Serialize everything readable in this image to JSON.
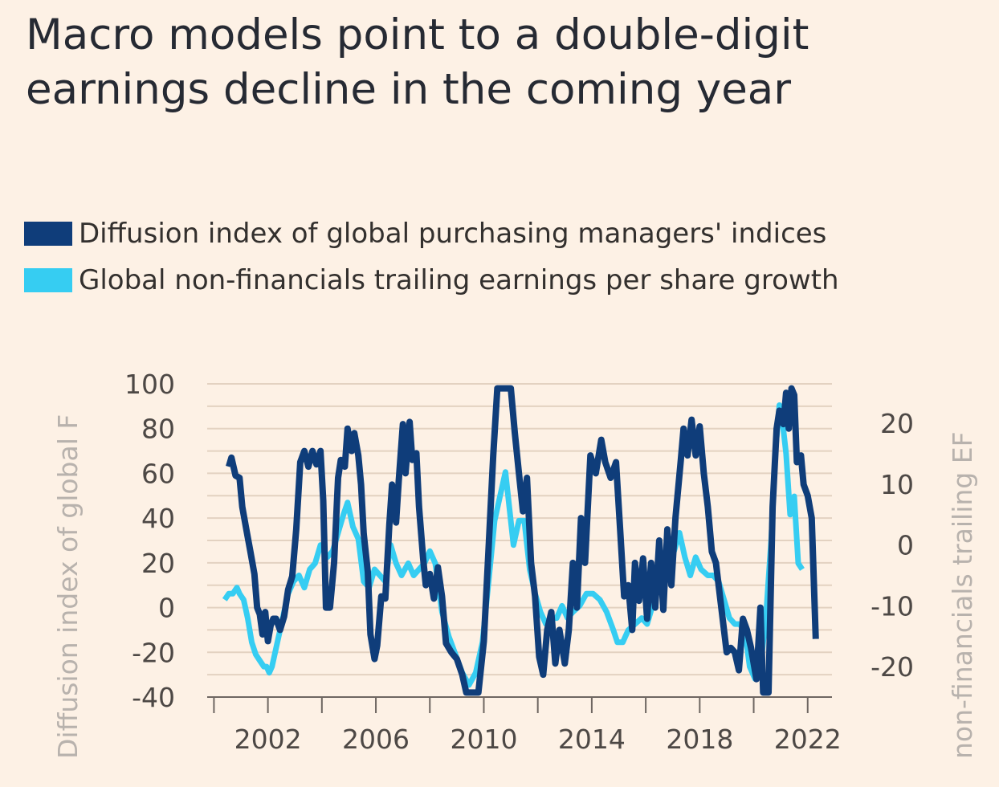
{
  "title": "Macro models point to a double-digit earnings decline in the coming year",
  "legend": [
    {
      "label": "Diffusion index of global purchasing managers' indices",
      "color": "#0f3d7a"
    },
    {
      "label": "Global non-financials trailing earnings per share growth",
      "color": "#36cdf2"
    }
  ],
  "colors": {
    "background": "#fdf1e5",
    "grid": "#e3d2c1",
    "axis": "#6e6661",
    "tick_text": "#4d4845",
    "axis_title": "#b8b2ad"
  },
  "chart_data": {
    "type": "line",
    "ylabel": "Diffusion index of global F",
    "y2label": "non-financials trailing EF",
    "xlim": [
      1999.75,
      2022.9
    ],
    "ylim": [
      -40,
      100
    ],
    "y2lim": [
      -25,
      26.5
    ],
    "x_ticks": [
      2002,
      2006,
      2010,
      2014,
      2018,
      2022
    ],
    "y_ticks": [
      -40,
      -20,
      0,
      20,
      40,
      60,
      80,
      100
    ],
    "y2_ticks": [
      -20,
      -10,
      0,
      10,
      20
    ],
    "grid": true,
    "legend_position": "top",
    "series": [
      {
        "name": "Diffusion index of global purchasing managers' indices",
        "axis": "left",
        "color": "#0f3d7a",
        "points": [
          [
            2000.55,
            63
          ],
          [
            2000.65,
            67
          ],
          [
            2000.8,
            59
          ],
          [
            2000.95,
            58
          ],
          [
            2001.05,
            45
          ],
          [
            2001.2,
            35
          ],
          [
            2001.35,
            25
          ],
          [
            2001.5,
            15
          ],
          [
            2001.6,
            0
          ],
          [
            2001.7,
            -3
          ],
          [
            2001.8,
            -12
          ],
          [
            2001.9,
            -2
          ],
          [
            2002.0,
            -15
          ],
          [
            2002.1,
            -8
          ],
          [
            2002.2,
            -5
          ],
          [
            2002.3,
            -5
          ],
          [
            2002.45,
            -10
          ],
          [
            2002.6,
            -4
          ],
          [
            2002.75,
            8
          ],
          [
            2002.9,
            14
          ],
          [
            2003.05,
            35
          ],
          [
            2003.2,
            65
          ],
          [
            2003.35,
            70
          ],
          [
            2003.5,
            63
          ],
          [
            2003.65,
            70
          ],
          [
            2003.8,
            64
          ],
          [
            2003.95,
            70
          ],
          [
            2004.05,
            48
          ],
          [
            2004.15,
            0
          ],
          [
            2004.3,
            0
          ],
          [
            2004.45,
            20
          ],
          [
            2004.6,
            58
          ],
          [
            2004.7,
            66
          ],
          [
            2004.85,
            63
          ],
          [
            2004.95,
            80
          ],
          [
            2005.1,
            70
          ],
          [
            2005.2,
            78
          ],
          [
            2005.35,
            68
          ],
          [
            2005.45,
            55
          ],
          [
            2005.55,
            33
          ],
          [
            2005.7,
            16
          ],
          [
            2005.8,
            -12
          ],
          [
            2005.95,
            -23
          ],
          [
            2006.05,
            -17
          ],
          [
            2006.2,
            5
          ],
          [
            2006.35,
            4
          ],
          [
            2006.5,
            37
          ],
          [
            2006.6,
            55
          ],
          [
            2006.75,
            38
          ],
          [
            2006.85,
            57
          ],
          [
            2007.0,
            82
          ],
          [
            2007.1,
            60
          ],
          [
            2007.25,
            83
          ],
          [
            2007.35,
            66
          ],
          [
            2007.5,
            69
          ],
          [
            2007.6,
            45
          ],
          [
            2007.75,
            22
          ],
          [
            2007.85,
            10
          ],
          [
            2008.0,
            15
          ],
          [
            2008.15,
            4
          ],
          [
            2008.3,
            18
          ],
          [
            2008.45,
            5
          ],
          [
            2008.6,
            -16
          ],
          [
            2008.8,
            -20
          ],
          [
            2009.0,
            -23
          ],
          [
            2009.2,
            -30
          ],
          [
            2009.35,
            -38
          ],
          [
            2009.6,
            -38
          ],
          [
            2009.8,
            -38
          ],
          [
            2010.0,
            -15
          ],
          [
            2010.15,
            20
          ],
          [
            2010.35,
            68
          ],
          [
            2010.5,
            98
          ],
          [
            2010.75,
            98
          ],
          [
            2011.0,
            98
          ],
          [
            2011.15,
            78
          ],
          [
            2011.3,
            60
          ],
          [
            2011.45,
            43
          ],
          [
            2011.6,
            58
          ],
          [
            2011.75,
            20
          ],
          [
            2011.9,
            5
          ],
          [
            2012.05,
            -22
          ],
          [
            2012.2,
            -30
          ],
          [
            2012.35,
            -10
          ],
          [
            2012.5,
            -2
          ],
          [
            2012.65,
            -25
          ],
          [
            2012.8,
            -10
          ],
          [
            2013.0,
            -25
          ],
          [
            2013.15,
            -10
          ],
          [
            2013.3,
            20
          ],
          [
            2013.45,
            0
          ],
          [
            2013.6,
            40
          ],
          [
            2013.75,
            20
          ],
          [
            2013.95,
            68
          ],
          [
            2014.15,
            60
          ],
          [
            2014.35,
            75
          ],
          [
            2014.5,
            65
          ],
          [
            2014.7,
            58
          ],
          [
            2014.9,
            65
          ],
          [
            2015.05,
            35
          ],
          [
            2015.2,
            5
          ],
          [
            2015.35,
            10
          ],
          [
            2015.5,
            -10
          ],
          [
            2015.6,
            20
          ],
          [
            2015.75,
            3
          ],
          [
            2015.9,
            22
          ],
          [
            2016.05,
            -5
          ],
          [
            2016.2,
            20
          ],
          [
            2016.35,
            0
          ],
          [
            2016.5,
            30
          ],
          [
            2016.65,
            -1
          ],
          [
            2016.8,
            35
          ],
          [
            2016.95,
            10
          ],
          [
            2017.1,
            40
          ],
          [
            2017.3,
            66
          ],
          [
            2017.4,
            80
          ],
          [
            2017.55,
            68
          ],
          [
            2017.7,
            84
          ],
          [
            2017.85,
            68
          ],
          [
            2018.0,
            81
          ],
          [
            2018.15,
            60
          ],
          [
            2018.3,
            45
          ],
          [
            2018.45,
            25
          ],
          [
            2018.6,
            20
          ],
          [
            2018.8,
            0
          ],
          [
            2019.0,
            -20
          ],
          [
            2019.15,
            -18
          ],
          [
            2019.3,
            -20
          ],
          [
            2019.45,
            -28
          ],
          [
            2019.6,
            -5
          ],
          [
            2019.75,
            -10
          ],
          [
            2019.9,
            -18
          ],
          [
            2020.1,
            -32
          ],
          [
            2020.25,
            0
          ],
          [
            2020.35,
            -38
          ],
          [
            2020.55,
            -38
          ],
          [
            2020.7,
            45
          ],
          [
            2020.85,
            80
          ],
          [
            2020.95,
            88
          ],
          [
            2021.1,
            82
          ],
          [
            2021.2,
            96
          ],
          [
            2021.3,
            80
          ],
          [
            2021.4,
            98
          ],
          [
            2021.5,
            95
          ],
          [
            2021.6,
            65
          ],
          [
            2021.75,
            68
          ],
          [
            2021.85,
            55
          ],
          [
            2022.0,
            50
          ],
          [
            2022.15,
            40
          ],
          [
            2022.3,
            -14
          ]
        ]
      },
      {
        "name": "Global non-financials trailing earnings per share growth",
        "axis": "right",
        "color": "#36cdf2",
        "points": [
          [
            2000.4,
            -9
          ],
          [
            2000.55,
            -8
          ],
          [
            2000.7,
            -8
          ],
          [
            2000.85,
            -7
          ],
          [
            2000.95,
            -8
          ],
          [
            2001.1,
            -9
          ],
          [
            2001.25,
            -12
          ],
          [
            2001.4,
            -16
          ],
          [
            2001.55,
            -18
          ],
          [
            2001.7,
            -19
          ],
          [
            2001.85,
            -20
          ],
          [
            2001.95,
            -20
          ],
          [
            2002.05,
            -21
          ],
          [
            2002.15,
            -20
          ],
          [
            2002.35,
            -16
          ],
          [
            2002.55,
            -12
          ],
          [
            2002.75,
            -8
          ],
          [
            2002.95,
            -6
          ],
          [
            2003.15,
            -5
          ],
          [
            2003.35,
            -7
          ],
          [
            2003.55,
            -4
          ],
          [
            2003.75,
            -3
          ],
          [
            2003.95,
            0
          ],
          [
            2004.2,
            -2
          ],
          [
            2004.4,
            -1
          ],
          [
            2004.6,
            2
          ],
          [
            2004.8,
            5
          ],
          [
            2004.95,
            7
          ],
          [
            2005.15,
            3
          ],
          [
            2005.35,
            1
          ],
          [
            2005.55,
            -6
          ],
          [
            2005.75,
            -7
          ],
          [
            2005.95,
            -4
          ],
          [
            2006.15,
            -5
          ],
          [
            2006.35,
            -6
          ],
          [
            2006.55,
            0
          ],
          [
            2006.75,
            -3
          ],
          [
            2006.95,
            -5
          ],
          [
            2007.2,
            -3
          ],
          [
            2007.4,
            -5
          ],
          [
            2007.6,
            -4
          ],
          [
            2007.8,
            -3
          ],
          [
            2008.0,
            -1
          ],
          [
            2008.2,
            -3
          ],
          [
            2008.45,
            -11
          ],
          [
            2008.7,
            -15
          ],
          [
            2008.95,
            -18
          ],
          [
            2009.2,
            -21
          ],
          [
            2009.45,
            -23
          ],
          [
            2009.7,
            -21
          ],
          [
            2009.95,
            -16
          ],
          [
            2010.2,
            -5
          ],
          [
            2010.4,
            4
          ],
          [
            2010.6,
            8
          ],
          [
            2010.8,
            12
          ],
          [
            2010.95,
            6
          ],
          [
            2011.1,
            0
          ],
          [
            2011.3,
            4
          ],
          [
            2011.5,
            4
          ],
          [
            2011.7,
            -4
          ],
          [
            2011.9,
            -8
          ],
          [
            2012.1,
            -11
          ],
          [
            2012.3,
            -13
          ],
          [
            2012.5,
            -12
          ],
          [
            2012.7,
            -12
          ],
          [
            2012.9,
            -10
          ],
          [
            2013.1,
            -12
          ],
          [
            2013.3,
            -11
          ],
          [
            2013.55,
            -10
          ],
          [
            2013.8,
            -8
          ],
          [
            2014.05,
            -8
          ],
          [
            2014.3,
            -9
          ],
          [
            2014.55,
            -11
          ],
          [
            2014.8,
            -14
          ],
          [
            2014.95,
            -16
          ],
          [
            2015.15,
            -16
          ],
          [
            2015.35,
            -14
          ],
          [
            2015.6,
            -13
          ],
          [
            2015.85,
            -12
          ],
          [
            2016.05,
            -13
          ],
          [
            2016.25,
            -10
          ],
          [
            2016.45,
            -7
          ],
          [
            2016.65,
            -4
          ],
          [
            2016.85,
            -2
          ],
          [
            2017.05,
            -1
          ],
          [
            2017.25,
            2
          ],
          [
            2017.45,
            -2
          ],
          [
            2017.65,
            -5
          ],
          [
            2017.85,
            -2
          ],
          [
            2018.05,
            -4
          ],
          [
            2018.3,
            -5
          ],
          [
            2018.5,
            -5
          ],
          [
            2018.7,
            -6
          ],
          [
            2018.9,
            -9
          ],
          [
            2019.1,
            -12
          ],
          [
            2019.3,
            -13
          ],
          [
            2019.5,
            -13
          ],
          [
            2019.7,
            -15
          ],
          [
            2019.85,
            -20
          ],
          [
            2020.05,
            -22
          ],
          [
            2020.25,
            -20
          ],
          [
            2020.45,
            -12
          ],
          [
            2020.65,
            1
          ],
          [
            2020.8,
            15
          ],
          [
            2020.95,
            23
          ],
          [
            2021.05,
            21
          ],
          [
            2021.2,
            15
          ],
          [
            2021.35,
            5
          ],
          [
            2021.5,
            8
          ],
          [
            2021.65,
            -3
          ],
          [
            2021.8,
            -4
          ]
        ]
      }
    ]
  }
}
